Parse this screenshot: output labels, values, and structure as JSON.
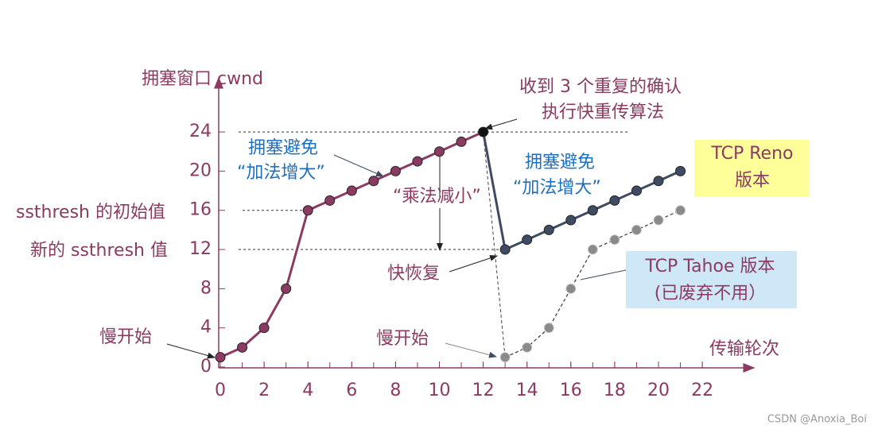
{
  "chart_data": {
    "type": "line",
    "y_label": "拥塞窗口 cwnd",
    "x_label": "传输轮次",
    "xlim": [
      0,
      24
    ],
    "xticks": [
      0,
      2,
      4,
      6,
      8,
      10,
      12,
      14,
      16,
      18,
      20,
      22
    ],
    "ylim": [
      0,
      29
    ],
    "yticks": [
      0,
      4,
      8,
      12,
      16,
      20,
      24
    ],
    "grid": false,
    "series": [
      {
        "x": [
          0,
          1,
          2,
          3,
          4,
          5,
          6,
          7,
          8,
          9,
          10,
          11,
          12
        ],
        "values": [
          1,
          2,
          4,
          8,
          16,
          17,
          18,
          19,
          20,
          21,
          22,
          23,
          24
        ],
        "color": "#8b3a62"
      },
      {
        "name": "TCP Reno",
        "x": [
          13,
          14,
          15,
          16,
          17,
          18,
          19,
          20,
          21
        ],
        "values": [
          12,
          13,
          14,
          15,
          16,
          17,
          18,
          19,
          20
        ],
        "color": "#3f4b63"
      },
      {
        "name": "TCP Tahoe 版本",
        "x": [
          13,
          14,
          15,
          16,
          17,
          18,
          19,
          20,
          21
        ],
        "values": [
          1,
          2,
          4,
          8,
          12,
          13,
          14,
          15,
          16
        ],
        "color": "#8a8a8a",
        "dashed": true
      }
    ],
    "annotations": [
      "收到 3 个重复的确认",
      "执行快重传算法",
      "拥塞避免",
      "“加法增大”",
      "拥塞避免",
      "“加法增大”",
      "“乘法减小”",
      "快恢复",
      "慢开始",
      "慢开始",
      "ssthresh 的初始值",
      "新的 ssthresh 值",
      "版本",
      "(已废弃不用）"
    ]
  },
  "watermark": "CSDN @Anoxia_Boi"
}
